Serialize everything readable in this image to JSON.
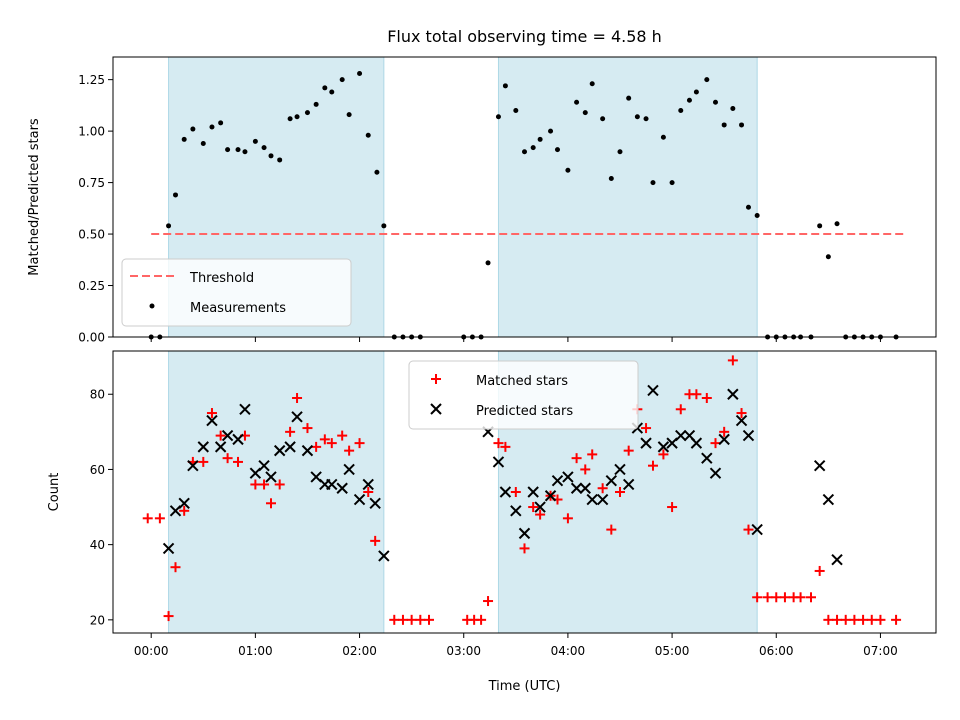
{
  "chart_data": [
    {
      "type": "scatter",
      "title": "Flux total observing time = 4.58 h",
      "xlabel": "",
      "ylabel": "Matched/Predicted stars",
      "xlim": [
        "-00:22",
        "07:32"
      ],
      "ylim": [
        0,
        1.36
      ],
      "yticks": [
        "0.00",
        "0.25",
        "0.50",
        "0.75",
        "1.00",
        "1.25"
      ],
      "ytick_values": [
        0,
        0.25,
        0.5,
        0.75,
        1.0,
        1.25
      ],
      "shaded_intervals": [
        [
          "00:10",
          "02:14"
        ],
        [
          "03:20",
          "05:49"
        ]
      ],
      "shade_color": "#add8e6",
      "threshold": {
        "name": "Threshold",
        "value": 0.5,
        "x_range": [
          "00:00",
          "07:15"
        ],
        "color": "#ff6666",
        "style": "dashed"
      },
      "series": [
        {
          "name": "Measurements",
          "color": "#000000",
          "marker": "dot",
          "points": [
            [
              "00:00",
              0
            ],
            [
              "00:05",
              0
            ],
            [
              "00:10",
              0.54
            ],
            [
              "00:14",
              0.69
            ],
            [
              "00:19",
              0.96
            ],
            [
              "00:24",
              1.01
            ],
            [
              "00:30",
              0.94
            ],
            [
              "00:35",
              1.02
            ],
            [
              "00:40",
              1.04
            ],
            [
              "00:44",
              0.91
            ],
            [
              "00:50",
              0.91
            ],
            [
              "00:54",
              0.9
            ],
            [
              "01:00",
              0.95
            ],
            [
              "01:05",
              0.92
            ],
            [
              "01:09",
              0.88
            ],
            [
              "01:14",
              0.86
            ],
            [
              "01:20",
              1.06
            ],
            [
              "01:24",
              1.07
            ],
            [
              "01:30",
              1.09
            ],
            [
              "01:35",
              1.13
            ],
            [
              "01:40",
              1.21
            ],
            [
              "01:44",
              1.19
            ],
            [
              "01:50",
              1.25
            ],
            [
              "01:54",
              1.08
            ],
            [
              "02:00",
              1.28
            ],
            [
              "02:05",
              0.98
            ],
            [
              "02:10",
              0.8
            ],
            [
              "02:14",
              0.54
            ],
            [
              "02:20",
              0
            ],
            [
              "02:25",
              0
            ],
            [
              "02:30",
              0
            ],
            [
              "02:35",
              0
            ],
            [
              "03:00",
              0
            ],
            [
              "03:05",
              0
            ],
            [
              "03:10",
              0
            ],
            [
              "03:14",
              0.36
            ],
            [
              "03:20",
              1.07
            ],
            [
              "03:24",
              1.22
            ],
            [
              "03:30",
              1.1
            ],
            [
              "03:35",
              0.9
            ],
            [
              "03:40",
              0.92
            ],
            [
              "03:44",
              0.96
            ],
            [
              "03:50",
              1.0
            ],
            [
              "03:54",
              0.91
            ],
            [
              "04:00",
              0.81
            ],
            [
              "04:05",
              1.14
            ],
            [
              "04:10",
              1.09
            ],
            [
              "04:14",
              1.23
            ],
            [
              "04:20",
              1.06
            ],
            [
              "04:25",
              0.77
            ],
            [
              "04:30",
              0.9
            ],
            [
              "04:35",
              1.16
            ],
            [
              "04:40",
              1.07
            ],
            [
              "04:45",
              1.06
            ],
            [
              "04:49",
              0.75
            ],
            [
              "04:55",
              0.97
            ],
            [
              "05:00",
              0.75
            ],
            [
              "05:05",
              1.1
            ],
            [
              "05:10",
              1.15
            ],
            [
              "05:14",
              1.19
            ],
            [
              "05:20",
              1.25
            ],
            [
              "05:25",
              1.14
            ],
            [
              "05:30",
              1.03
            ],
            [
              "05:35",
              1.11
            ],
            [
              "05:40",
              1.03
            ],
            [
              "05:44",
              0.63
            ],
            [
              "05:49",
              0.59
            ],
            [
              "05:55",
              0
            ],
            [
              "06:00",
              0
            ],
            [
              "06:05",
              0
            ],
            [
              "06:10",
              0
            ],
            [
              "06:14",
              0
            ],
            [
              "06:20",
              0
            ],
            [
              "06:25",
              0.54
            ],
            [
              "06:30",
              0.39
            ],
            [
              "06:35",
              0.55
            ],
            [
              "06:40",
              0
            ],
            [
              "06:45",
              0
            ],
            [
              "06:50",
              0
            ],
            [
              "06:55",
              0
            ],
            [
              "07:00",
              0
            ],
            [
              "07:09",
              0
            ]
          ]
        }
      ],
      "legend": {
        "position": "lower-left",
        "entries": [
          "Threshold",
          "Measurements"
        ]
      }
    },
    {
      "type": "scatter",
      "title": "",
      "xlabel": "Time (UTC)",
      "ylabel": "Count",
      "xlim": [
        "-00:22",
        "07:32"
      ],
      "ylim": [
        16.5,
        91.5
      ],
      "xticks": [
        "00:00",
        "01:00",
        "02:00",
        "03:00",
        "04:00",
        "05:00",
        "06:00",
        "07:00"
      ],
      "yticks": [
        "20",
        "40",
        "60",
        "80"
      ],
      "ytick_values": [
        20,
        40,
        60,
        80
      ],
      "shaded_intervals": [
        [
          "00:10",
          "02:14"
        ],
        [
          "03:20",
          "05:49"
        ]
      ],
      "shade_color": "#add8e6",
      "series": [
        {
          "name": "Matched stars",
          "color": "#ff0000",
          "marker": "plus",
          "points": [
            [
              "-00:02",
              47
            ],
            [
              "00:05",
              47
            ],
            [
              "00:10",
              21
            ],
            [
              "00:14",
              34
            ],
            [
              "00:19",
              49
            ],
            [
              "00:24",
              62
            ],
            [
              "00:30",
              62
            ],
            [
              "00:35",
              75
            ],
            [
              "00:40",
              69
            ],
            [
              "00:44",
              63
            ],
            [
              "00:50",
              62
            ],
            [
              "00:54",
              69
            ],
            [
              "01:00",
              56
            ],
            [
              "01:05",
              56
            ],
            [
              "01:09",
              51
            ],
            [
              "01:14",
              56
            ],
            [
              "01:20",
              70
            ],
            [
              "01:24",
              79
            ],
            [
              "01:30",
              71
            ],
            [
              "01:35",
              66
            ],
            [
              "01:40",
              68
            ],
            [
              "01:44",
              67
            ],
            [
              "01:50",
              69
            ],
            [
              "01:54",
              65
            ],
            [
              "02:00",
              67
            ],
            [
              "02:05",
              54
            ],
            [
              "02:09",
              41
            ],
            [
              "02:20",
              20
            ],
            [
              "02:25",
              20
            ],
            [
              "02:30",
              20
            ],
            [
              "02:35",
              20
            ],
            [
              "02:40",
              20
            ],
            [
              "03:02",
              20
            ],
            [
              "03:06",
              20
            ],
            [
              "03:10",
              20
            ],
            [
              "03:14",
              25
            ],
            [
              "03:20",
              67
            ],
            [
              "03:24",
              66
            ],
            [
              "03:30",
              54
            ],
            [
              "03:35",
              39
            ],
            [
              "03:40",
              50
            ],
            [
              "03:44",
              48
            ],
            [
              "03:50",
              53
            ],
            [
              "03:54",
              52
            ],
            [
              "04:00",
              47
            ],
            [
              "04:05",
              63
            ],
            [
              "04:10",
              60
            ],
            [
              "04:14",
              64
            ],
            [
              "04:20",
              55
            ],
            [
              "04:25",
              44
            ],
            [
              "04:30",
              54
            ],
            [
              "04:35",
              65
            ],
            [
              "04:40",
              76
            ],
            [
              "04:45",
              71
            ],
            [
              "04:49",
              61
            ],
            [
              "04:55",
              64
            ],
            [
              "05:00",
              50
            ],
            [
              "05:05",
              76
            ],
            [
              "05:10",
              80
            ],
            [
              "05:14",
              80
            ],
            [
              "05:20",
              79
            ],
            [
              "05:25",
              67
            ],
            [
              "05:30",
              70
            ],
            [
              "05:35",
              89
            ],
            [
              "05:40",
              75
            ],
            [
              "05:44",
              44
            ],
            [
              "05:49",
              26
            ],
            [
              "05:55",
              26
            ],
            [
              "06:00",
              26
            ],
            [
              "06:05",
              26
            ],
            [
              "06:10",
              26
            ],
            [
              "06:14",
              26
            ],
            [
              "06:20",
              26
            ],
            [
              "06:25",
              33
            ],
            [
              "06:30",
              20
            ],
            [
              "06:35",
              20
            ],
            [
              "06:40",
              20
            ],
            [
              "06:45",
              20
            ],
            [
              "06:50",
              20
            ],
            [
              "06:55",
              20
            ],
            [
              "07:00",
              20
            ],
            [
              "07:09",
              20
            ]
          ]
        },
        {
          "name": "Predicted stars",
          "color": "#000000",
          "marker": "x",
          "points": [
            [
              "00:10",
              39
            ],
            [
              "00:14",
              49
            ],
            [
              "00:19",
              51
            ],
            [
              "00:24",
              61
            ],
            [
              "00:30",
              66
            ],
            [
              "00:35",
              73
            ],
            [
              "00:40",
              66
            ],
            [
              "00:44",
              69
            ],
            [
              "00:50",
              68
            ],
            [
              "00:54",
              76
            ],
            [
              "01:00",
              59
            ],
            [
              "01:05",
              61
            ],
            [
              "01:09",
              58
            ],
            [
              "01:14",
              65
            ],
            [
              "01:20",
              66
            ],
            [
              "01:24",
              74
            ],
            [
              "01:30",
              65
            ],
            [
              "01:35",
              58
            ],
            [
              "01:40",
              56
            ],
            [
              "01:44",
              56
            ],
            [
              "01:50",
              55
            ],
            [
              "01:54",
              60
            ],
            [
              "02:00",
              52
            ],
            [
              "02:05",
              56
            ],
            [
              "02:09",
              51
            ],
            [
              "02:14",
              37
            ],
            [
              "03:14",
              70
            ],
            [
              "03:20",
              62
            ],
            [
              "03:24",
              54
            ],
            [
              "03:30",
              49
            ],
            [
              "03:35",
              43
            ],
            [
              "03:40",
              54
            ],
            [
              "03:44",
              50
            ],
            [
              "03:50",
              53
            ],
            [
              "03:54",
              57
            ],
            [
              "04:00",
              58
            ],
            [
              "04:05",
              55
            ],
            [
              "04:10",
              55
            ],
            [
              "04:14",
              52
            ],
            [
              "04:20",
              52
            ],
            [
              "04:25",
              57
            ],
            [
              "04:30",
              60
            ],
            [
              "04:35",
              56
            ],
            [
              "04:40",
              71
            ],
            [
              "04:45",
              67
            ],
            [
              "04:49",
              81
            ],
            [
              "04:55",
              66
            ],
            [
              "05:00",
              67
            ],
            [
              "05:05",
              69
            ],
            [
              "05:10",
              69
            ],
            [
              "05:14",
              67
            ],
            [
              "05:20",
              63
            ],
            [
              "05:25",
              59
            ],
            [
              "05:30",
              68
            ],
            [
              "05:35",
              80
            ],
            [
              "05:40",
              73
            ],
            [
              "05:44",
              69
            ],
            [
              "05:49",
              44
            ],
            [
              "06:25",
              61
            ],
            [
              "06:30",
              52
            ],
            [
              "06:35",
              36
            ]
          ]
        }
      ],
      "legend": {
        "position": "upper-center",
        "entries": [
          "Matched stars",
          "Predicted stars"
        ]
      }
    }
  ]
}
